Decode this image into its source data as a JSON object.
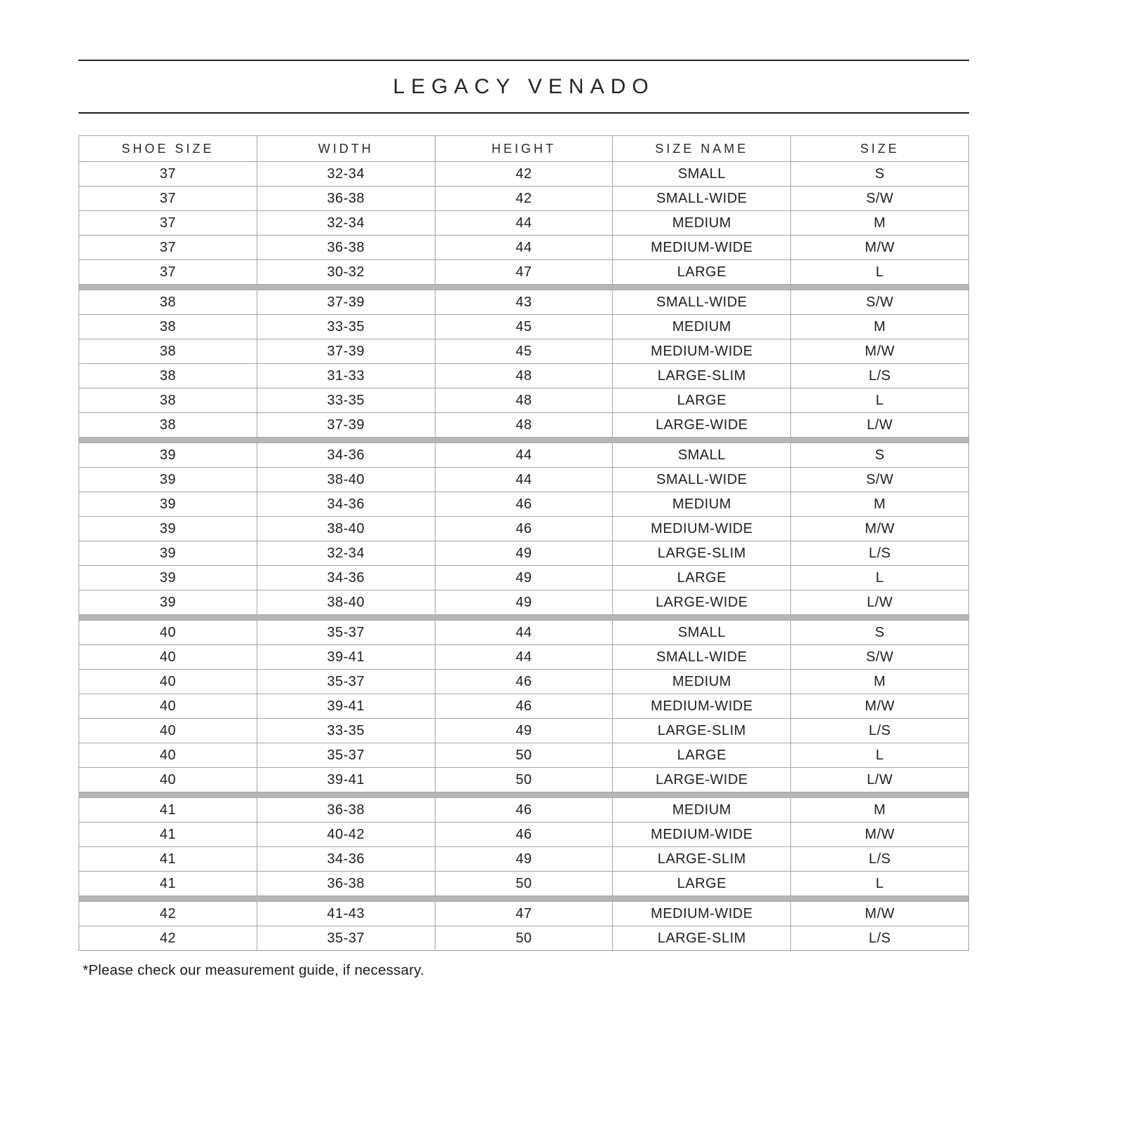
{
  "title": "LEGACY VENADO",
  "footnote": "*Please check our measurement guide, if necessary.",
  "colors": {
    "text": "#1f1f1f",
    "border": "#a6a6a6",
    "group_divider": "#b6b6b6",
    "title_rule": "#1f1f1f",
    "background": "#ffffff"
  },
  "table": {
    "columns": [
      "SHOE SIZE",
      "WIDTH",
      "HEIGHT",
      "SIZE NAME",
      "SIZE"
    ],
    "groups": [
      {
        "shoe_size": "37",
        "rows": [
          [
            "37",
            "32-34",
            "42",
            "SMALL",
            "S"
          ],
          [
            "37",
            "36-38",
            "42",
            "SMALL-WIDE",
            "S/W"
          ],
          [
            "37",
            "32-34",
            "44",
            "MEDIUM",
            "M"
          ],
          [
            "37",
            "36-38",
            "44",
            "MEDIUM-WIDE",
            "M/W"
          ],
          [
            "37",
            "30-32",
            "47",
            "LARGE",
            "L"
          ]
        ]
      },
      {
        "shoe_size": "38",
        "rows": [
          [
            "38",
            "37-39",
            "43",
            "SMALL-WIDE",
            "S/W"
          ],
          [
            "38",
            "33-35",
            "45",
            "MEDIUM",
            "M"
          ],
          [
            "38",
            "37-39",
            "45",
            "MEDIUM-WIDE",
            "M/W"
          ],
          [
            "38",
            "31-33",
            "48",
            "LARGE-SLIM",
            "L/S"
          ],
          [
            "38",
            "33-35",
            "48",
            "LARGE",
            "L"
          ],
          [
            "38",
            "37-39",
            "48",
            "LARGE-WIDE",
            "L/W"
          ]
        ]
      },
      {
        "shoe_size": "39",
        "rows": [
          [
            "39",
            "34-36",
            "44",
            "SMALL",
            "S"
          ],
          [
            "39",
            "38-40",
            "44",
            "SMALL-WIDE",
            "S/W"
          ],
          [
            "39",
            "34-36",
            "46",
            "MEDIUM",
            "M"
          ],
          [
            "39",
            "38-40",
            "46",
            "MEDIUM-WIDE",
            "M/W"
          ],
          [
            "39",
            "32-34",
            "49",
            "LARGE-SLIM",
            "L/S"
          ],
          [
            "39",
            "34-36",
            "49",
            "LARGE",
            "L"
          ],
          [
            "39",
            "38-40",
            "49",
            "LARGE-WIDE",
            "L/W"
          ]
        ]
      },
      {
        "shoe_size": "40",
        "rows": [
          [
            "40",
            "35-37",
            "44",
            "SMALL",
            "S"
          ],
          [
            "40",
            "39-41",
            "44",
            "SMALL-WIDE",
            "S/W"
          ],
          [
            "40",
            "35-37",
            "46",
            "MEDIUM",
            "M"
          ],
          [
            "40",
            "39-41",
            "46",
            "MEDIUM-WIDE",
            "M/W"
          ],
          [
            "40",
            "33-35",
            "49",
            "LARGE-SLIM",
            "L/S"
          ],
          [
            "40",
            "35-37",
            "50",
            "LARGE",
            "L"
          ],
          [
            "40",
            "39-41",
            "50",
            "LARGE-WIDE",
            "L/W"
          ]
        ]
      },
      {
        "shoe_size": "41",
        "rows": [
          [
            "41",
            "36-38",
            "46",
            "MEDIUM",
            "M"
          ],
          [
            "41",
            "40-42",
            "46",
            "MEDIUM-WIDE",
            "M/W"
          ],
          [
            "41",
            "34-36",
            "49",
            "LARGE-SLIM",
            "L/S"
          ],
          [
            "41",
            "36-38",
            "50",
            "LARGE",
            "L"
          ]
        ]
      },
      {
        "shoe_size": "42",
        "rows": [
          [
            "42",
            "41-43",
            "47",
            "MEDIUM-WIDE",
            "M/W"
          ],
          [
            "42",
            "35-37",
            "50",
            "LARGE-SLIM",
            "L/S"
          ]
        ]
      }
    ]
  }
}
